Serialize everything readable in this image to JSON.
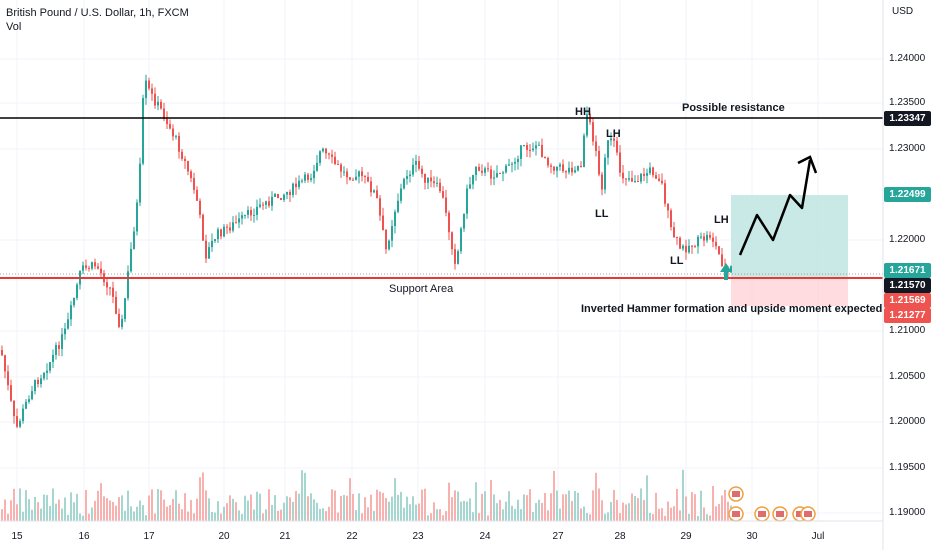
{
  "header": {
    "symbol": "British Pound / U.S. Dollar, 1h, FXCM",
    "volume": "Vol"
  },
  "axis": {
    "currency": "USD",
    "price_ticks": [
      "1.24000",
      "1.23500",
      "1.23000",
      "1.22000",
      "1.21000",
      "1.20500",
      "1.20000",
      "1.19500",
      "1.19000"
    ],
    "date_ticks": [
      "15",
      "16",
      "17",
      "20",
      "21",
      "22",
      "23",
      "24",
      "27",
      "28",
      "29",
      "30",
      "Jul"
    ]
  },
  "badges": {
    "resistance": "1.23347",
    "target": "1.22499",
    "p1": "1.21671",
    "p2": "1.21570",
    "p3": "1.21569",
    "stop": "1.21277"
  },
  "annotations": {
    "hh": "HH",
    "lh1": "LH",
    "ll1": "LL",
    "ll2": "LL",
    "lh2": "LH",
    "resistance": "Possible resistance",
    "support": "Support Area",
    "note": "Inverted Hammer formation and upside moment expected"
  },
  "colors": {
    "up": "#26a69a",
    "down": "#ef5350",
    "resistance_line": "#000000",
    "support_line": "#e53935",
    "target_zone": "#b2dfdb",
    "stop_zone": "#ffcdd2",
    "badge_dark": "#131722",
    "badge_green": "#26a69a",
    "badge_red": "#ef5350"
  },
  "chart_data": {
    "type": "candlestick",
    "price_range": [
      1.188,
      1.2455
    ],
    "resistance": 1.23347,
    "support": 1.2157,
    "target": 1.22499,
    "stop": 1.21277
  }
}
